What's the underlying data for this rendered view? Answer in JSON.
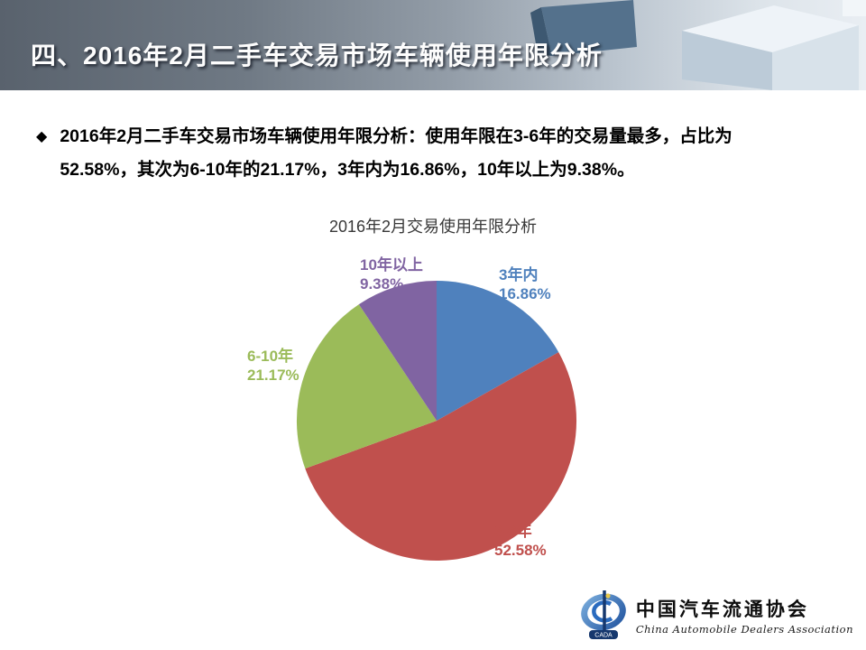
{
  "header": {
    "title": "四、2016年2月二手车交易市场车辆使用年限分析"
  },
  "bullet": {
    "marker": "◆",
    "text": "2016年2月二手车交易市场车辆使用年限分析：使用年限在3-6年的交易量最多，占比为52.58%，其次为6-10年的21.17%，3年内为16.86%，10年以上为9.38%。"
  },
  "chart_data": {
    "type": "pie",
    "title": "2016年2月交易使用年限分析",
    "categories": [
      "3年内",
      "3-6年",
      "6-10年",
      "10年以上"
    ],
    "values": [
      16.86,
      52.58,
      21.17,
      9.38
    ],
    "colors": [
      "#4F81BD",
      "#C0504D",
      "#9BBB59",
      "#8064A2"
    ],
    "start_angle": "top",
    "direction": "clockwise",
    "legend_position": "none",
    "labels": [
      {
        "name": "3年内",
        "pct": "16.86%"
      },
      {
        "name": "3-6年",
        "pct": "52.58%"
      },
      {
        "name": "6-10年",
        "pct": "21.17%"
      },
      {
        "name": "10年以上",
        "pct": "9.38%"
      }
    ]
  },
  "footer": {
    "logo_cn": "中国汽车流通协会",
    "logo_en": "China Automobile Dealers Association",
    "logo_badge": "CADA"
  }
}
